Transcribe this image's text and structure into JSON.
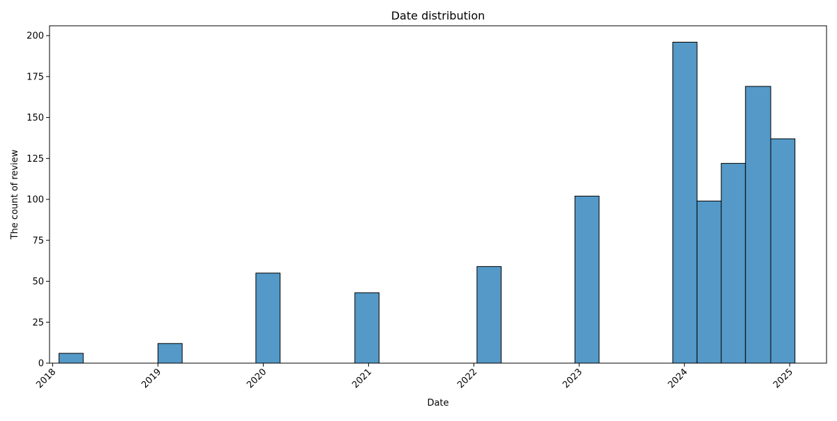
{
  "chart_data": {
    "type": "bar",
    "title": "Date distribution",
    "xlabel": "Date",
    "ylabel": "The count of review",
    "x_tick_labels": [
      "2018",
      "2019",
      "2020",
      "2021",
      "2022",
      "2023",
      "2024",
      "2025"
    ],
    "y_ticks": [
      0,
      25,
      50,
      75,
      100,
      125,
      150,
      175,
      200
    ],
    "ylim": [
      0,
      206
    ],
    "xlim": [
      2017.97,
      2025.35
    ],
    "bar_color": "#5499c7",
    "edge_color": "#000000",
    "grid": false,
    "bins": [
      {
        "start": 2018.06,
        "end": 2018.29,
        "value": 6
      },
      {
        "start": 2019.0,
        "end": 2019.23,
        "value": 12
      },
      {
        "start": 2019.93,
        "end": 2020.16,
        "value": 55
      },
      {
        "start": 2020.87,
        "end": 2021.1,
        "value": 43
      },
      {
        "start": 2022.03,
        "end": 2022.26,
        "value": 59
      },
      {
        "start": 2022.96,
        "end": 2023.19,
        "value": 102
      },
      {
        "start": 2023.89,
        "end": 2024.12,
        "value": 196
      },
      {
        "start": 2024.12,
        "end": 2024.35,
        "value": 99
      },
      {
        "start": 2024.35,
        "end": 2024.58,
        "value": 122
      },
      {
        "start": 2024.58,
        "end": 2024.82,
        "value": 169
      },
      {
        "start": 2024.82,
        "end": 2025.05,
        "value": 137
      }
    ]
  }
}
